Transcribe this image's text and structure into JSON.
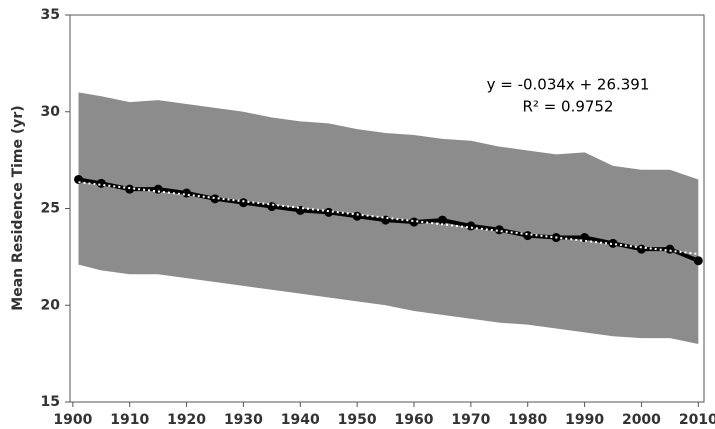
{
  "chart_data": {
    "type": "line",
    "y_label": "Mean Residence Time (yr)",
    "annotations": [
      "y = -0.034x + 26.391",
      "R² = 0.9752"
    ],
    "x": [
      1901,
      1905,
      1910,
      1915,
      1920,
      1925,
      1930,
      1935,
      1940,
      1945,
      1950,
      1955,
      1960,
      1965,
      1970,
      1975,
      1980,
      1985,
      1990,
      1995,
      2000,
      2005,
      2010
    ],
    "values": [
      26.5,
      26.3,
      26.0,
      26.0,
      25.8,
      25.5,
      25.3,
      25.1,
      24.9,
      24.8,
      24.6,
      24.4,
      24.3,
      24.4,
      24.1,
      23.9,
      23.6,
      23.5,
      23.5,
      23.2,
      22.9,
      22.9,
      22.3
    ],
    "color": "#000000",
    "band": {
      "color": "#8c8c8c",
      "upper": [
        31.0,
        30.8,
        30.5,
        30.6,
        30.4,
        30.2,
        30.0,
        29.7,
        29.5,
        29.4,
        29.1,
        28.9,
        28.8,
        28.6,
        28.5,
        28.2,
        28.0,
        27.8,
        27.9,
        27.2,
        27.0,
        27.0,
        26.5
      ],
      "lower": [
        22.1,
        21.8,
        21.6,
        21.6,
        21.4,
        21.2,
        21.0,
        20.8,
        20.6,
        20.4,
        20.2,
        20.0,
        19.7,
        19.5,
        19.3,
        19.1,
        19.0,
        18.8,
        18.6,
        18.4,
        18.3,
        18.3,
        18.0
      ]
    },
    "trend": {
      "x": [
        1901,
        2010
      ],
      "values": [
        26.36,
        22.65
      ],
      "color": "#ffffff"
    },
    "xlim": [
      1899.5,
      2011
    ],
    "xticks": [
      1900,
      1910,
      1920,
      1930,
      1940,
      1950,
      1960,
      1970,
      1980,
      1990,
      2000,
      2010
    ],
    "ylim": [
      15,
      35
    ],
    "yticks": [
      15,
      20,
      25,
      30,
      35
    ]
  }
}
